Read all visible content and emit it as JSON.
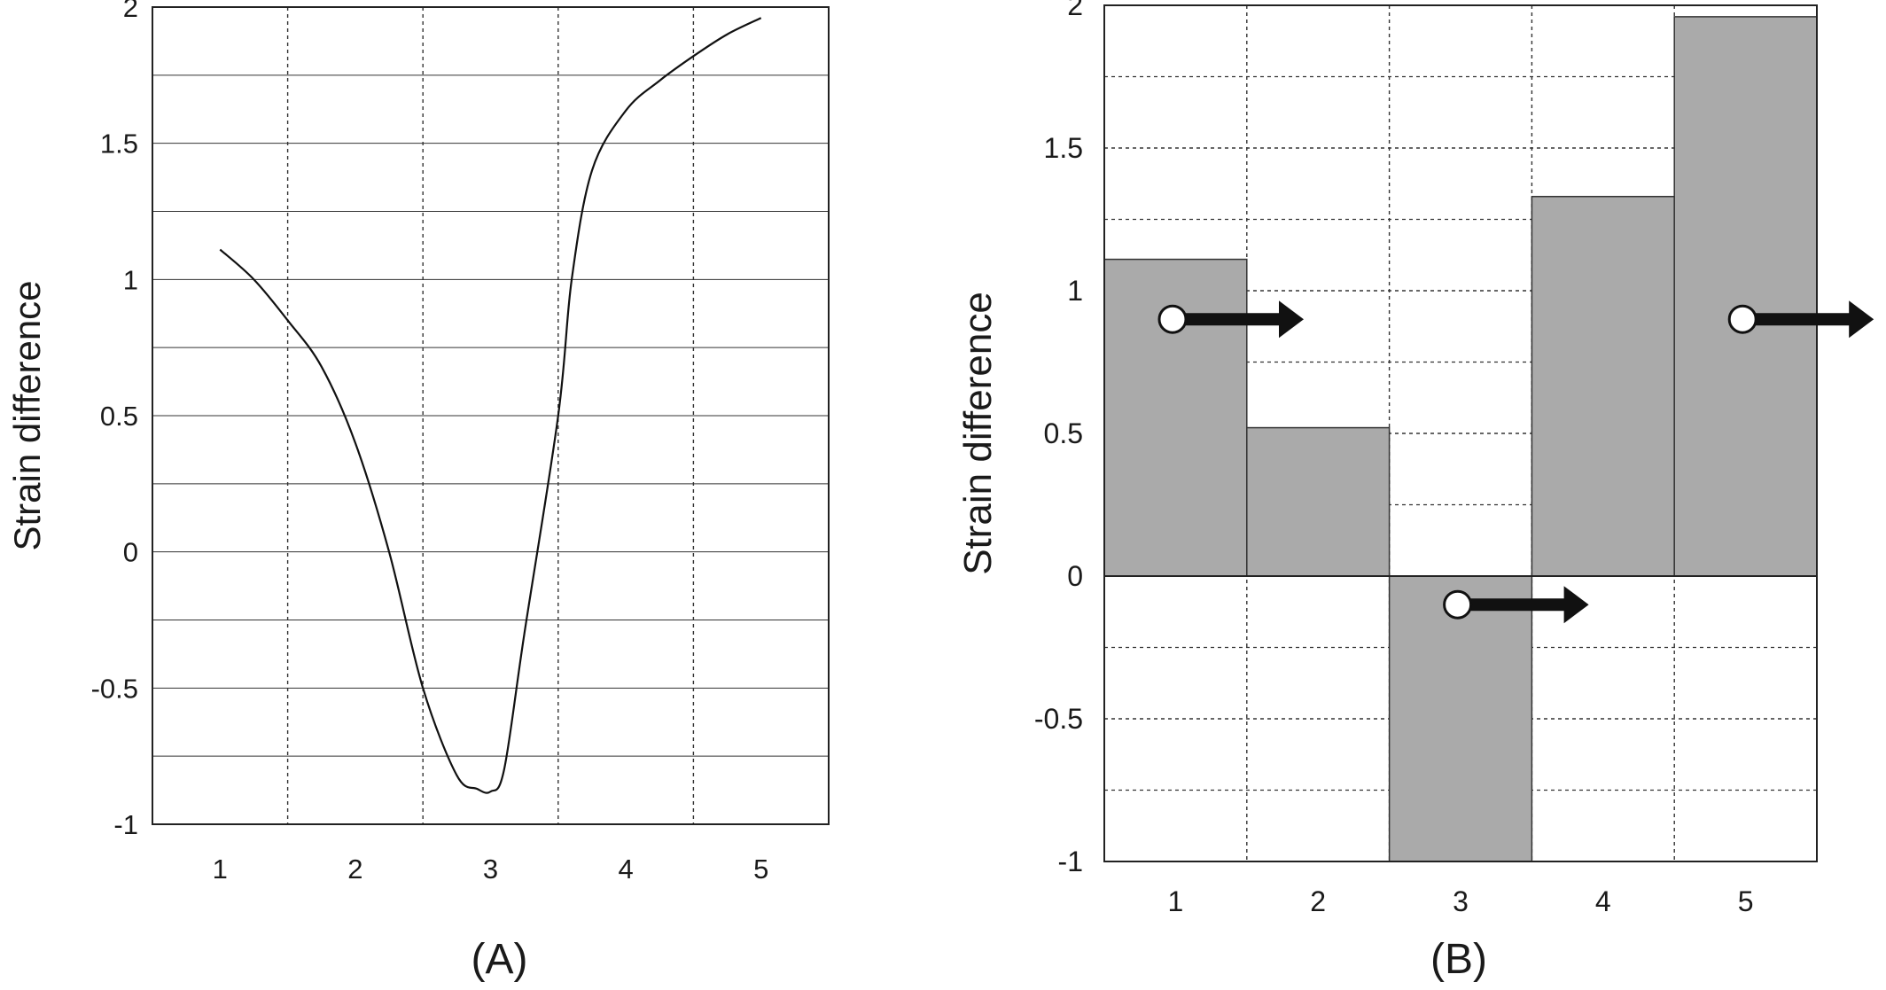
{
  "chart_data": [
    {
      "panel_label": "(A)",
      "type": "line",
      "ylabel": "Strain difference",
      "xlabel": "",
      "xlim": [
        0.5,
        5.5
      ],
      "ylim": [
        -1,
        2
      ],
      "xticks": [
        "1",
        "2",
        "3",
        "4",
        "5"
      ],
      "yticks": [
        "-1",
        "-0.5",
        "0",
        "0.5",
        "1",
        "1.5",
        "2"
      ],
      "grid": true,
      "series": [
        {
          "x": [
            1.0,
            1.25,
            1.5,
            1.75,
            2.0,
            2.25,
            2.5,
            2.75,
            2.9,
            3.0,
            3.1,
            3.25,
            3.5,
            3.6,
            3.75,
            4.0,
            4.25,
            4.5,
            4.75,
            5.0
          ],
          "values": [
            1.11,
            1.0,
            0.85,
            0.68,
            0.4,
            0.0,
            -0.5,
            -0.82,
            -0.87,
            -0.88,
            -0.8,
            -0.3,
            0.5,
            1.0,
            1.4,
            1.62,
            1.73,
            1.82,
            1.9,
            1.96
          ]
        }
      ]
    },
    {
      "panel_label": "(B)",
      "type": "bar",
      "ylabel": "Strain difference",
      "xlabel": "",
      "ylim": [
        -1,
        2
      ],
      "categories": [
        "1",
        "2",
        "3",
        "4",
        "5"
      ],
      "yticks": [
        "-1",
        "-0.5",
        "0",
        "0.5",
        "1",
        "1.5",
        "2"
      ],
      "grid": true,
      "series": [
        {
          "values": [
            1.11,
            0.52,
            -1.0,
            1.33,
            1.96
          ]
        }
      ],
      "markers": [
        {
          "category": "1",
          "y": 0.9
        },
        {
          "category": "3",
          "y": -0.1
        },
        {
          "category": "5",
          "y": 0.9
        }
      ]
    }
  ],
  "colors": {
    "bar_fill": "#aaaaaa",
    "bar_stroke": "#333333",
    "axis": "#222222",
    "grid": "#333333",
    "arrow": "#111111",
    "marker_fill": "#ffffff"
  }
}
